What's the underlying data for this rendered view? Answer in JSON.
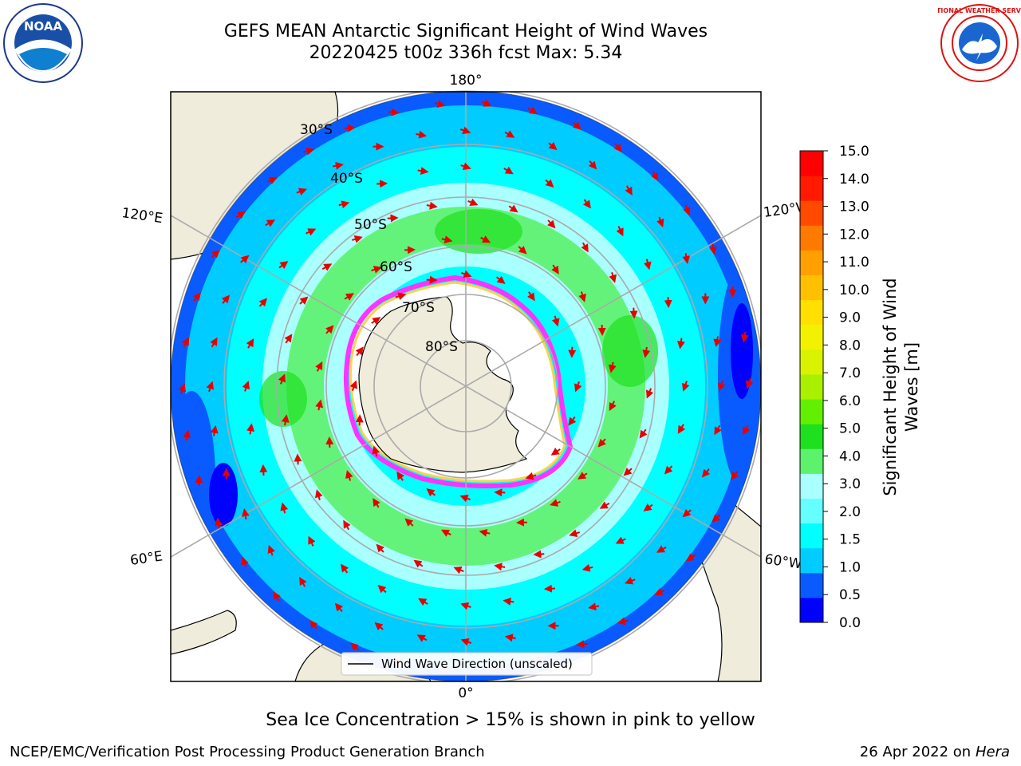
{
  "header": {
    "title_line1": "GEFS MEAN Antarctic Significant Height of Wind Waves",
    "title_line2": "20220425 t00z 336h fcst   Max: 5.34"
  },
  "map": {
    "projection": "south-polar-stereographic",
    "lon_labels": [
      "180°",
      "0°",
      "120°E",
      "120°W",
      "60°E",
      "60°W"
    ],
    "lat_labels": [
      "30°S",
      "40°S",
      "50°S",
      "60°S",
      "70°S",
      "80°S"
    ],
    "legend_label": "Wind Wave Direction (unscaled)",
    "arrow_color": "#e60000",
    "land_color": "#efecdc",
    "ice_edge_colors": [
      "#ff33ff",
      "#ffd24d"
    ]
  },
  "colorbar": {
    "label_line1": "Significant Height of Wind",
    "label_line2": "Waves [m]",
    "ticks": [
      "0.0",
      "0.5",
      "1.0",
      "1.5",
      "2.0",
      "3.0",
      "4.0",
      "5.0",
      "6.0",
      "7.0",
      "8.0",
      "9.0",
      "10.0",
      "11.0",
      "12.0",
      "13.0",
      "14.0",
      "15.0"
    ],
    "colors": [
      "#0000ff",
      "#0a5bff",
      "#00ccff",
      "#00ffff",
      "#66ffff",
      "#aaffff",
      "#5cf26b",
      "#1ee01e",
      "#63f000",
      "#a8f000",
      "#d9f200",
      "#f2f200",
      "#ffe000",
      "#ffc000",
      "#ffa000",
      "#ff7a00",
      "#ff4a00",
      "#ff1a00",
      "#ff0000"
    ]
  },
  "footer": {
    "subtitle": "Sea Ice Concentration > 15% is shown in pink to yellow",
    "credit": "NCEP/EMC/Verification Post Processing Product Generation Branch",
    "date": "26 Apr 2022 on",
    "machine": "Hera"
  },
  "logos": {
    "noaa_text": "NOAA",
    "nws_text": "NATIONAL WEATHER SERVICE"
  }
}
